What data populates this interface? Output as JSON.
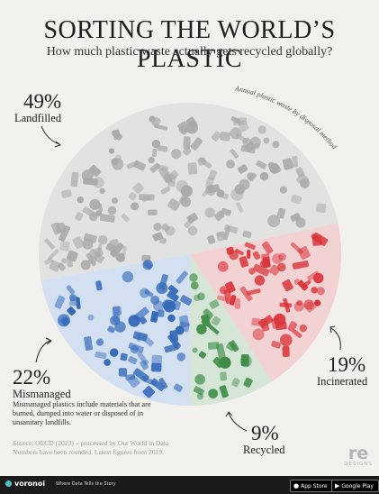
{
  "header": {
    "title": "SORTING THE WORLD’S PLASTIC",
    "subtitle": "How much plastic waste actually gets recycled globally?"
  },
  "chart_data": {
    "type": "pie",
    "title": "SORTING THE WORLD’S PLASTIC",
    "subtitle": "How much plastic waste actually gets recycled globally?",
    "annotation": "Annual plastic waste by disposal method",
    "slices": [
      {
        "label": "Landfilled",
        "value": 49,
        "display": "49%",
        "color": "#a9a9a9"
      },
      {
        "label": "Incinerated",
        "value": 19,
        "display": "19%",
        "color": "#d9343a"
      },
      {
        "label": "Recycled",
        "value": 9,
        "display": "9%",
        "color": "#3f8c48"
      },
      {
        "label": "Mismanaged",
        "value": 22,
        "display": "22%",
        "color": "#3469b8"
      }
    ],
    "note": "Mismanaged plastics include materials that are burned, dumped into water or disposed of in unsanitary landfills."
  },
  "source": {
    "line1": "Source: OECD (2023) – processed by Our World in Data",
    "line2": "Numbers have been rounded. Latest figures from 2019."
  },
  "logo": {
    "mark": "re",
    "sub": "DESIGNS"
  },
  "footer": {
    "brand": "voronoi",
    "tagline": "Where Data Tells the Story",
    "app_store": "App Store",
    "google_play": "Google Play"
  }
}
